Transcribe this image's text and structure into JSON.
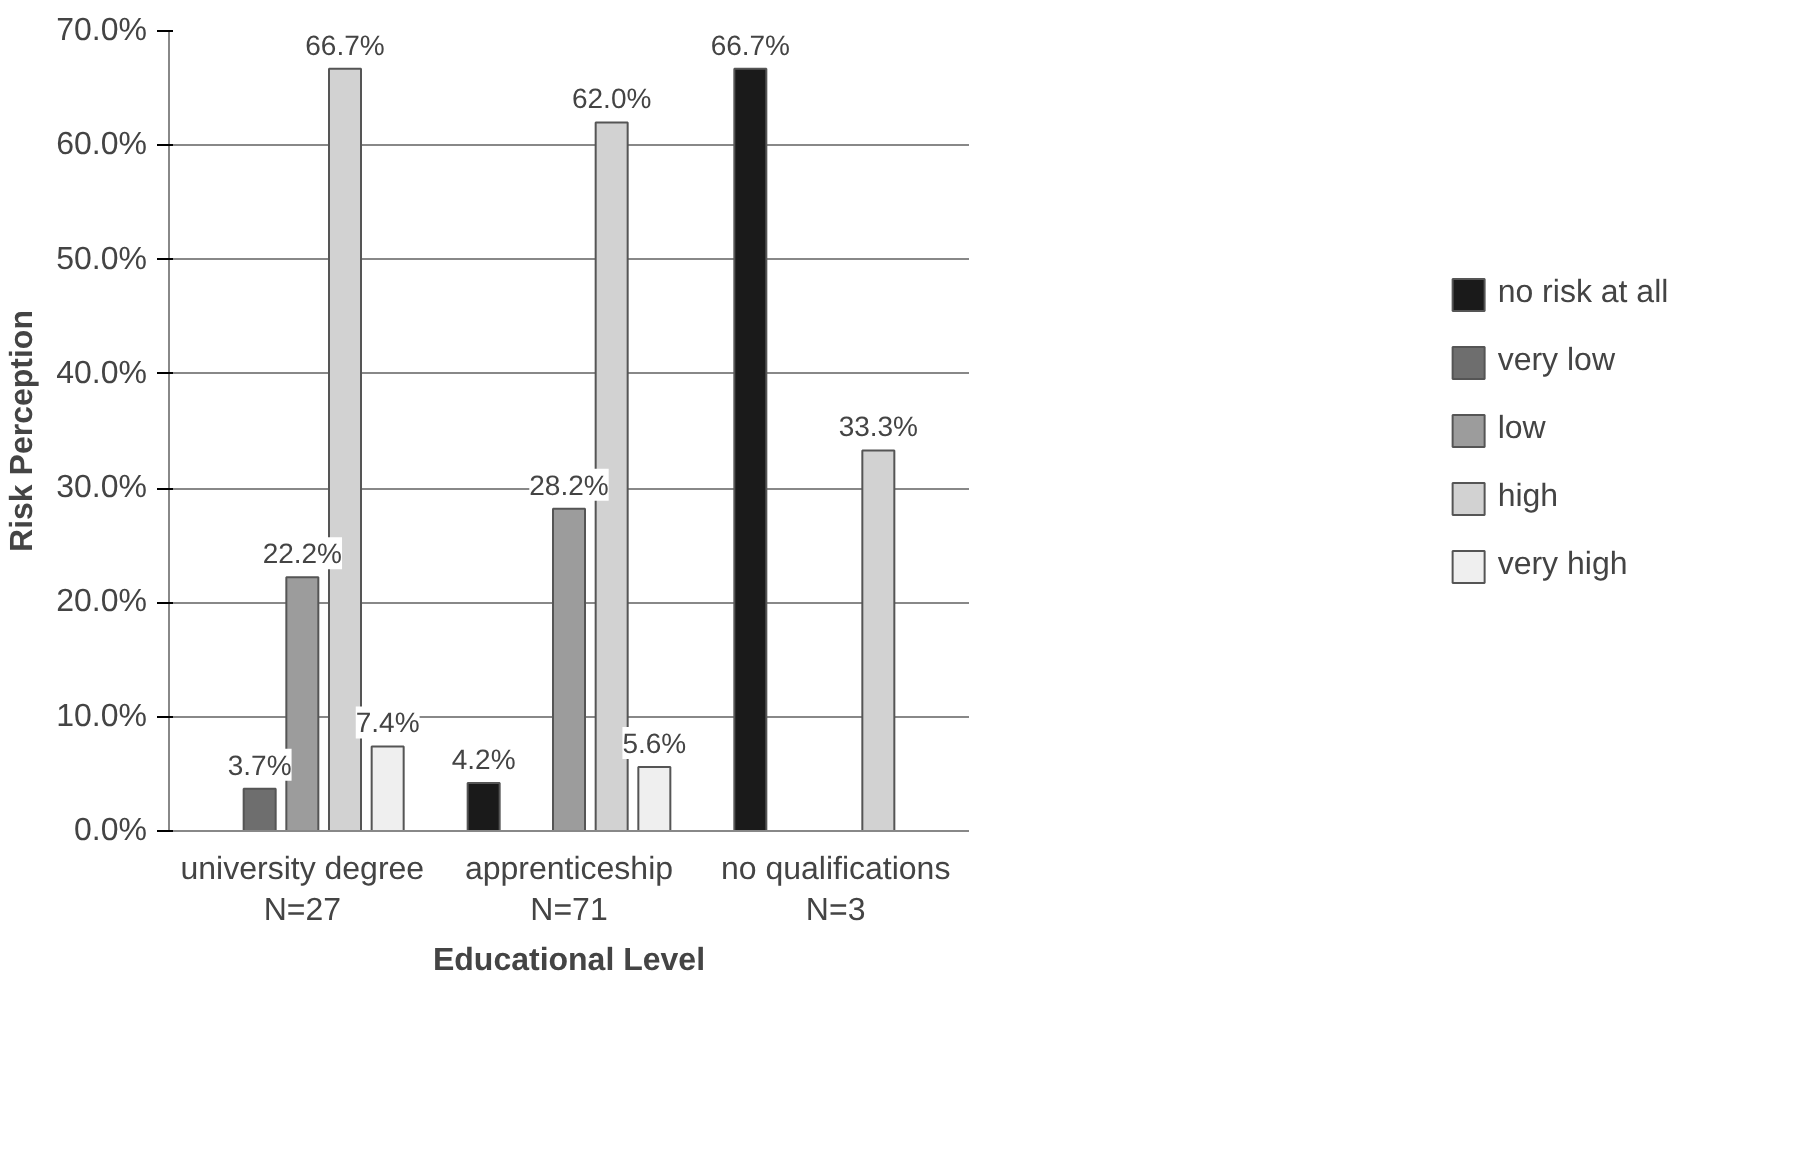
{
  "chart_data": {
    "type": "bar",
    "xlabel": "Educational Level",
    "ylabel": "Risk Perception",
    "categories": [
      "university degree\nN=27",
      "apprenticeship\nN=71",
      "no qualifications\nN=3"
    ],
    "series": [
      {
        "name": "no risk at all",
        "color": "#1a1a1a",
        "values": [
          null,
          4.2,
          66.7
        ],
        "value_labels": [
          null,
          "4.2%",
          "66.7%"
        ]
      },
      {
        "name": "very low",
        "color": "#6e6e6e",
        "values": [
          3.7,
          null,
          null
        ],
        "value_labels": [
          "3.7%",
          null,
          null
        ]
      },
      {
        "name": "low",
        "color": "#9c9c9c",
        "values": [
          22.2,
          28.2,
          null
        ],
        "value_labels": [
          "22.2%",
          "28.2%",
          null
        ]
      },
      {
        "name": "high",
        "color": "#d2d2d2",
        "values": [
          66.7,
          62.0,
          33.3
        ],
        "value_labels": [
          "66.7%",
          "62.0%",
          "33.3%"
        ]
      },
      {
        "name": "very high",
        "color": "#efefef",
        "values": [
          7.4,
          5.6,
          null
        ],
        "value_labels": [
          "7.4%",
          "5.6%",
          null
        ]
      }
    ],
    "ylim": [
      0,
      70
    ],
    "yticks": [
      {
        "value": 0,
        "label": "0.0%"
      },
      {
        "value": 10,
        "label": "10.0%"
      },
      {
        "value": 20,
        "label": "20.0%"
      },
      {
        "value": 30,
        "label": "30.0%"
      },
      {
        "value": 40,
        "label": "40.0%"
      },
      {
        "value": 50,
        "label": "50.0%"
      },
      {
        "value": 60,
        "label": "60.0%"
      },
      {
        "value": 70,
        "label": "70.0%"
      }
    ],
    "grid": "y",
    "legend": "right"
  }
}
